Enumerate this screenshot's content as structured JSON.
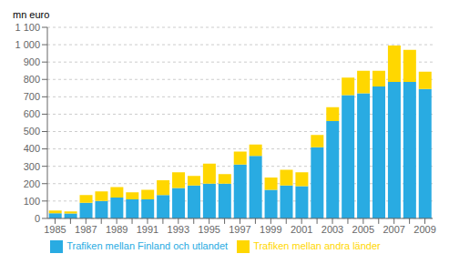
{
  "chart_data": {
    "type": "bar",
    "ylabel": "mn euro",
    "categories": [
      "1985",
      null,
      "1987",
      null,
      "1989",
      null,
      "1991",
      null,
      "1993",
      null,
      "1995",
      null,
      "1997",
      null,
      "1999",
      null,
      "2001",
      null,
      "2003",
      null,
      "2005",
      null,
      "2007",
      null,
      "2009"
    ],
    "series": [
      {
        "name": "Trafiken mellan Finland och utlandet",
        "color": "#29ABE2",
        "values": [
          30,
          28,
          90,
          100,
          120,
          110,
          110,
          135,
          175,
          190,
          200,
          200,
          310,
          360,
          165,
          190,
          185,
          410,
          560,
          710,
          720,
          760,
          785,
          785,
          745
        ]
      },
      {
        "name": "Trafiken mellan andra länder",
        "color": "#FFD700",
        "values": [
          15,
          12,
          45,
          55,
          60,
          40,
          55,
          85,
          90,
          55,
          115,
          55,
          75,
          65,
          70,
          90,
          80,
          70,
          80,
          100,
          130,
          90,
          210,
          185,
          100
        ]
      }
    ],
    "stacked": true,
    "ylim": [
      0,
      1100
    ],
    "yticks": [
      0,
      100,
      200,
      300,
      400,
      500,
      600,
      700,
      800,
      900,
      {
        "value": 1000,
        "label": "1 000"
      },
      {
        "value": 1100,
        "label": "1 100"
      }
    ],
    "grid": true,
    "legend": "bottom"
  }
}
